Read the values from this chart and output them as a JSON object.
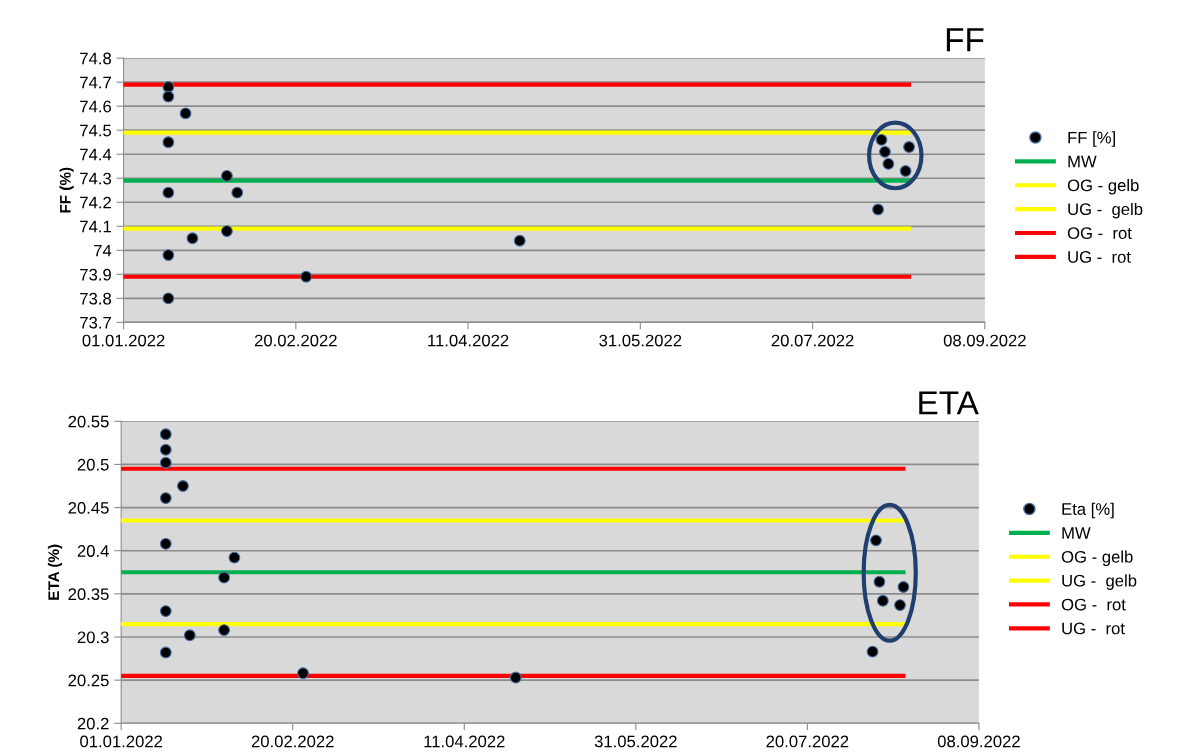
{
  "chart_data": [
    {
      "type": "scatter",
      "title": "FF",
      "ylabel": "FF (%)",
      "legend": "right",
      "grid": "y",
      "xlim": [
        "2022-01-01",
        "2022-09-08"
      ],
      "xticks": [
        {
          "value": "2022-01-01",
          "label": "01.01.2022"
        },
        {
          "value": "2022-02-20",
          "label": "20.02.2022"
        },
        {
          "value": "2022-04-11",
          "label": "11.04.2022"
        },
        {
          "value": "2022-05-31",
          "label": "31.05.2022"
        },
        {
          "value": "2022-07-20",
          "label": "20.07.2022"
        },
        {
          "value": "2022-09-08",
          "label": "08.09.2022"
        }
      ],
      "ylim": [
        73.7,
        74.8
      ],
      "yticks": [
        73.7,
        73.8,
        73.9,
        74,
        74.1,
        74.2,
        74.3,
        74.4,
        74.5,
        74.6,
        74.7,
        74.8
      ],
      "series": [
        {
          "name": "FF [%]",
          "marker": "circle",
          "color": "#000000",
          "x": [
            "2022-01-14",
            "2022-01-14",
            "2022-01-14",
            "2022-01-14",
            "2022-01-14",
            "2022-01-14",
            "2022-01-19",
            "2022-01-21",
            "2022-01-31",
            "2022-01-31",
            "2022-02-03",
            "2022-02-23",
            "2022-04-26",
            "2022-08-08",
            "2022-08-09",
            "2022-08-10",
            "2022-08-11",
            "2022-08-16",
            "2022-08-17"
          ],
          "values": [
            74.68,
            74.64,
            74.45,
            74.24,
            73.98,
            73.8,
            74.57,
            74.05,
            74.31,
            74.08,
            74.24,
            73.89,
            74.04,
            74.17,
            74.46,
            74.41,
            74.36,
            74.33,
            74.43
          ]
        },
        {
          "name": "MW",
          "type": "line",
          "color": "#00b050",
          "x": [
            "2022-01-01",
            "2022-08-17"
          ],
          "values": [
            74.29,
            74.29
          ]
        },
        {
          "name": "OG - gelb",
          "type": "line",
          "color": "#ffff00",
          "x": [
            "2022-01-01",
            "2022-08-17"
          ],
          "values": [
            74.49,
            74.49
          ]
        },
        {
          "name": "UG -  gelb",
          "type": "line",
          "color": "#ffff00",
          "x": [
            "2022-01-01",
            "2022-08-17"
          ],
          "values": [
            74.09,
            74.09
          ]
        },
        {
          "name": "OG -  rot",
          "type": "line",
          "color": "#ff0000",
          "x": [
            "2022-01-01",
            "2022-08-17"
          ],
          "values": [
            74.69,
            74.69
          ]
        },
        {
          "name": "UG -  rot",
          "type": "line",
          "color": "#ff0000",
          "x": [
            "2022-01-01",
            "2022-08-17"
          ],
          "values": [
            73.89,
            73.89
          ]
        }
      ]
    },
    {
      "type": "scatter",
      "title": "ETA",
      "ylabel": "ETA (%)",
      "legend": "right",
      "grid": "y",
      "xlim": [
        "2022-01-01",
        "2022-09-08"
      ],
      "xticks": [
        {
          "value": "2022-01-01",
          "label": "01.01.2022"
        },
        {
          "value": "2022-02-20",
          "label": "20.02.2022"
        },
        {
          "value": "2022-04-11",
          "label": "11.04.2022"
        },
        {
          "value": "2022-05-31",
          "label": "31.05.2022"
        },
        {
          "value": "2022-07-20",
          "label": "20.07.2022"
        },
        {
          "value": "2022-09-08",
          "label": "08.09.2022"
        }
      ],
      "ylim": [
        20.2,
        20.55
      ],
      "yticks": [
        20.2,
        20.25,
        20.3,
        20.35,
        20.4,
        20.45,
        20.5,
        20.55
      ],
      "series": [
        {
          "name": "Eta [%]",
          "marker": "circle",
          "color": "#000000",
          "x": [
            "2022-01-14",
            "2022-01-14",
            "2022-01-14",
            "2022-01-14",
            "2022-01-14",
            "2022-01-14",
            "2022-01-14",
            "2022-01-19",
            "2022-01-21",
            "2022-01-31",
            "2022-01-31",
            "2022-02-03",
            "2022-02-23",
            "2022-04-26",
            "2022-08-08",
            "2022-08-09",
            "2022-08-10",
            "2022-08-11",
            "2022-08-16",
            "2022-08-17"
          ],
          "values": [
            20.535,
            20.517,
            20.502,
            20.461,
            20.408,
            20.33,
            20.282,
            20.475,
            20.302,
            20.369,
            20.308,
            20.392,
            20.258,
            20.253,
            20.283,
            20.412,
            20.364,
            20.342,
            20.337,
            20.358
          ]
        },
        {
          "name": "MW",
          "type": "line",
          "color": "#00b050",
          "x": [
            "2022-01-01",
            "2022-08-17"
          ],
          "values": [
            20.375,
            20.375
          ]
        },
        {
          "name": "OG - gelb",
          "type": "line",
          "color": "#ffff00",
          "x": [
            "2022-01-01",
            "2022-08-17"
          ],
          "values": [
            20.435,
            20.435
          ]
        },
        {
          "name": "UG -  gelb",
          "type": "line",
          "color": "#ffff00",
          "x": [
            "2022-01-01",
            "2022-08-17"
          ],
          "values": [
            20.315,
            20.315
          ]
        },
        {
          "name": "OG -  rot",
          "type": "line",
          "color": "#ff0000",
          "x": [
            "2022-01-01",
            "2022-08-17"
          ],
          "values": [
            20.495,
            20.495
          ]
        },
        {
          "name": "UG -  rot",
          "type": "line",
          "color": "#ff0000",
          "x": [
            "2022-01-01",
            "2022-08-17"
          ],
          "values": [
            20.255,
            20.255
          ]
        }
      ]
    }
  ]
}
